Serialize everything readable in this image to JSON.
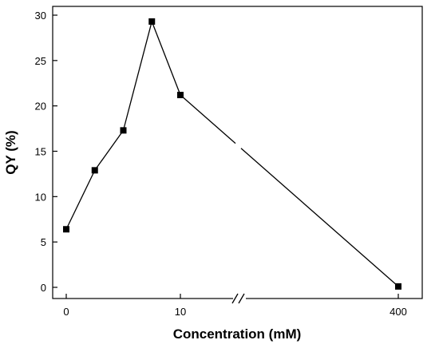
{
  "chart_data": {
    "type": "line",
    "xlabel": "Concentration (mM)",
    "ylabel": "QY (%)",
    "ylim": [
      -1.5,
      31
    ],
    "y_ticks": [
      0,
      5,
      10,
      15,
      20,
      25,
      30
    ],
    "y_tick_labels": [
      "0",
      "5",
      "10",
      "15",
      "20",
      "25",
      "30"
    ],
    "x_ticks": [
      0,
      10,
      400
    ],
    "x_tick_labels": [
      "0",
      "10",
      "400"
    ],
    "x_axis_break": "between 10 and 400",
    "line_break": "between 10 and 400",
    "marker": "square",
    "color": "#000000",
    "grid": false,
    "legend": "none",
    "series": [
      {
        "x": [
          0,
          2.5,
          5,
          7.5,
          10,
          400
        ],
        "y": [
          6.4,
          12.9,
          17.3,
          29.3,
          21.2,
          0.1
        ]
      }
    ]
  }
}
